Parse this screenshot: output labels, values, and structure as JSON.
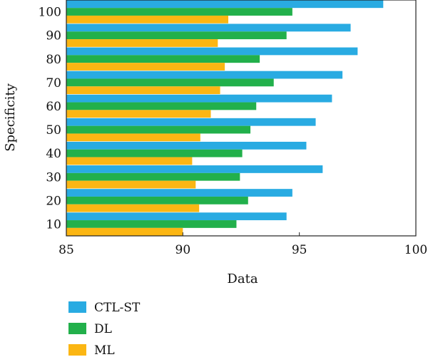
{
  "chart_data": {
    "type": "bar",
    "orientation": "horizontal",
    "title": "",
    "xlabel": "Data",
    "ylabel": "Specificity",
    "categories": [
      "10",
      "20",
      "30",
      "40",
      "50",
      "60",
      "70",
      "80",
      "90",
      "100"
    ],
    "xlim": [
      85,
      100
    ],
    "xticks": [
      "85",
      "90",
      "95",
      "100"
    ],
    "grid": false,
    "legend_position": "bottom-left",
    "series": [
      {
        "name": "CTL-ST",
        "color": "#29abe2",
        "values": [
          94.45,
          94.7,
          96.0,
          95.3,
          95.7,
          96.4,
          96.85,
          97.5,
          97.2,
          98.6
        ]
      },
      {
        "name": "DL",
        "color": "#22b04b",
        "values": [
          92.3,
          92.8,
          92.45,
          92.55,
          92.9,
          93.15,
          93.9,
          93.3,
          94.45,
          94.7
        ]
      },
      {
        "name": "ML",
        "color": "#fbb613",
        "values": [
          90.0,
          90.7,
          90.55,
          90.4,
          90.75,
          91.2,
          91.6,
          91.8,
          91.5,
          91.95
        ]
      }
    ]
  }
}
